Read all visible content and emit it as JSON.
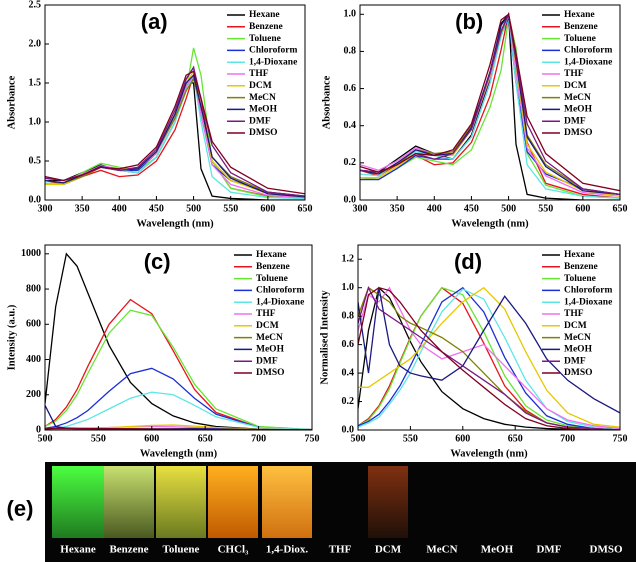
{
  "chart_data": [
    {
      "type": "line",
      "annotation": "(a)",
      "x_label": "Wavelength (nm)",
      "y_label": "Absorbance",
      "legend": "upper right",
      "xlim": [
        300,
        650
      ],
      "ylim": [
        0,
        2.5
      ],
      "xticks": [
        300,
        350,
        400,
        450,
        500,
        550,
        600,
        650
      ],
      "yticks": [
        {
          "value": 0,
          "label": "0.0"
        },
        0.5,
        {
          "value": 1,
          "label": "1.0"
        },
        1.5,
        {
          "value": 2,
          "label": "2.0"
        },
        2.5
      ],
      "x": [
        300,
        325,
        350,
        375,
        400,
        425,
        450,
        475,
        490,
        500,
        510,
        525,
        550,
        600,
        650
      ],
      "series": [
        {
          "name": "Hexane",
          "color": "#000000",
          "values": [
            0.25,
            0.25,
            0.35,
            0.45,
            0.38,
            0.35,
            0.55,
            1.0,
            1.5,
            1.5,
            0.4,
            0.05,
            0.02,
            0.0,
            0.0
          ]
        },
        {
          "name": "Benzene",
          "color": "#e8141c",
          "values": [
            0.25,
            0.2,
            0.3,
            0.38,
            0.3,
            0.32,
            0.5,
            0.9,
            1.3,
            1.6,
            1.3,
            0.5,
            0.15,
            0.05,
            0.02
          ]
        },
        {
          "name": "Toluene",
          "color": "#66e633",
          "values": [
            0.25,
            0.22,
            0.35,
            0.47,
            0.42,
            0.38,
            0.55,
            1.0,
            1.4,
            1.95,
            1.6,
            0.5,
            0.15,
            0.04,
            0.02
          ]
        },
        {
          "name": "Chloroform",
          "color": "#1a2fd6",
          "values": [
            0.2,
            0.2,
            0.3,
            0.42,
            0.38,
            0.38,
            0.6,
            1.1,
            1.55,
            1.7,
            1.1,
            0.45,
            0.25,
            0.1,
            0.05
          ]
        },
        {
          "name": "1,4-Dioxane",
          "color": "#5ce6e6",
          "values": [
            0.22,
            0.2,
            0.32,
            0.42,
            0.38,
            0.35,
            0.55,
            1.0,
            1.4,
            1.6,
            1.0,
            0.3,
            0.1,
            0.03,
            0.02
          ]
        },
        {
          "name": "THF",
          "color": "#f070f0",
          "values": [
            0.3,
            0.25,
            0.33,
            0.44,
            0.4,
            0.4,
            0.6,
            1.05,
            1.45,
            1.6,
            1.1,
            0.45,
            0.2,
            0.06,
            0.03
          ]
        },
        {
          "name": "DCM",
          "color": "#e6c800",
          "values": [
            0.2,
            0.2,
            0.3,
            0.42,
            0.4,
            0.4,
            0.62,
            1.1,
            1.5,
            1.65,
            1.2,
            0.5,
            0.25,
            0.08,
            0.04
          ]
        },
        {
          "name": "MeCN",
          "color": "#808000",
          "values": [
            0.25,
            0.22,
            0.3,
            0.42,
            0.38,
            0.4,
            0.62,
            1.05,
            1.4,
            1.55,
            1.2,
            0.55,
            0.3,
            0.1,
            0.05
          ]
        },
        {
          "name": "MeOH",
          "color": "#1a1a80",
          "values": [
            0.25,
            0.22,
            0.32,
            0.43,
            0.38,
            0.4,
            0.62,
            1.1,
            1.5,
            1.6,
            1.2,
            0.55,
            0.28,
            0.08,
            0.04
          ]
        },
        {
          "name": "DMF",
          "color": "#7a1a80",
          "values": [
            0.28,
            0.25,
            0.32,
            0.42,
            0.38,
            0.42,
            0.65,
            1.15,
            1.55,
            1.7,
            1.3,
            0.7,
            0.35,
            0.1,
            0.05
          ]
        },
        {
          "name": "DMSO",
          "color": "#800020",
          "values": [
            0.3,
            0.25,
            0.32,
            0.42,
            0.4,
            0.45,
            0.68,
            1.2,
            1.6,
            1.65,
            1.3,
            0.75,
            0.42,
            0.15,
            0.08
          ]
        }
      ]
    },
    {
      "type": "line",
      "annotation": "(b)",
      "x_label": "Wavelength (nm)",
      "y_label": "Absorbance",
      "legend": "upper right",
      "xlim": [
        300,
        650
      ],
      "ylim": [
        0,
        1.05
      ],
      "xticks": [
        300,
        350,
        400,
        450,
        500,
        550,
        600,
        650
      ],
      "yticks": [
        {
          "value": 0,
          "label": "0.0"
        },
        0.2,
        0.4,
        0.6,
        0.8,
        {
          "value": 1,
          "label": "1.0"
        }
      ],
      "x": [
        300,
        325,
        350,
        375,
        400,
        425,
        450,
        475,
        490,
        500,
        510,
        525,
        550,
        600,
        650
      ],
      "series": [
        {
          "name": "Hexane",
          "color": "#000000",
          "values": [
            0.16,
            0.15,
            0.22,
            0.29,
            0.25,
            0.22,
            0.35,
            0.65,
            0.95,
            1.0,
            0.3,
            0.03,
            0.01,
            0,
            0
          ]
        },
        {
          "name": "Benzene",
          "color": "#e8141c",
          "values": [
            0.16,
            0.13,
            0.19,
            0.24,
            0.19,
            0.2,
            0.31,
            0.56,
            0.81,
            1.0,
            0.81,
            0.31,
            0.09,
            0.03,
            0.01
          ]
        },
        {
          "name": "Toluene",
          "color": "#66e633",
          "values": [
            0.12,
            0.11,
            0.17,
            0.23,
            0.21,
            0.19,
            0.27,
            0.5,
            0.7,
            0.98,
            0.82,
            0.25,
            0.08,
            0.02,
            0.01
          ]
        },
        {
          "name": "Chloroform",
          "color": "#1a2fd6",
          "values": [
            0.11,
            0.11,
            0.17,
            0.24,
            0.22,
            0.22,
            0.34,
            0.63,
            0.89,
            0.98,
            0.63,
            0.26,
            0.14,
            0.06,
            0.03
          ]
        },
        {
          "name": "1,4-Dioxane",
          "color": "#5ce6e6",
          "values": [
            0.14,
            0.13,
            0.2,
            0.26,
            0.24,
            0.22,
            0.34,
            0.63,
            0.88,
            1.0,
            0.63,
            0.19,
            0.06,
            0.02,
            0.01
          ]
        },
        {
          "name": "THF",
          "color": "#f070f0",
          "values": [
            0.19,
            0.16,
            0.21,
            0.28,
            0.25,
            0.25,
            0.38,
            0.66,
            0.91,
            1.0,
            0.69,
            0.28,
            0.13,
            0.04,
            0.02
          ]
        },
        {
          "name": "DCM",
          "color": "#e6c800",
          "values": [
            0.12,
            0.12,
            0.18,
            0.25,
            0.24,
            0.24,
            0.38,
            0.67,
            0.91,
            1.0,
            0.73,
            0.3,
            0.15,
            0.05,
            0.02
          ]
        },
        {
          "name": "MeCN",
          "color": "#808000",
          "values": [
            0.16,
            0.14,
            0.19,
            0.27,
            0.25,
            0.26,
            0.4,
            0.68,
            0.9,
            1.0,
            0.77,
            0.35,
            0.19,
            0.06,
            0.03
          ]
        },
        {
          "name": "MeOH",
          "color": "#1a1a80",
          "values": [
            0.16,
            0.14,
            0.2,
            0.27,
            0.24,
            0.25,
            0.39,
            0.69,
            0.94,
            1.0,
            0.75,
            0.34,
            0.18,
            0.05,
            0.03
          ]
        },
        {
          "name": "DMF",
          "color": "#7a1a80",
          "values": [
            0.16,
            0.15,
            0.19,
            0.25,
            0.22,
            0.25,
            0.38,
            0.68,
            0.91,
            1.0,
            0.76,
            0.41,
            0.21,
            0.06,
            0.03
          ]
        },
        {
          "name": "DMSO",
          "color": "#800020",
          "values": [
            0.18,
            0.15,
            0.19,
            0.25,
            0.24,
            0.27,
            0.41,
            0.73,
            0.97,
            1.0,
            0.79,
            0.45,
            0.25,
            0.09,
            0.05
          ]
        }
      ]
    },
    {
      "type": "line",
      "annotation": "(c)",
      "x_label": "Wavelength (nm)",
      "y_label": "Intensity (a.u.)",
      "legend": "upper right",
      "xlim": [
        500,
        750
      ],
      "ylim": [
        0,
        1050
      ],
      "xticks": [
        500,
        550,
        600,
        650,
        700,
        750
      ],
      "yticks": [
        0,
        200,
        400,
        600,
        800,
        1000
      ],
      "x": [
        500,
        510,
        520,
        530,
        540,
        560,
        580,
        600,
        620,
        640,
        660,
        700,
        750
      ],
      "series": [
        {
          "name": "Hexane",
          "color": "#000000",
          "values": [
            150,
            700,
            1000,
            930,
            780,
            480,
            270,
            150,
            80,
            40,
            20,
            5,
            0
          ]
        },
        {
          "name": "Benzene",
          "color": "#e8141c",
          "values": [
            20,
            60,
            130,
            230,
            360,
            600,
            740,
            660,
            450,
            230,
            100,
            15,
            2
          ]
        },
        {
          "name": "Toluene",
          "color": "#66e633",
          "values": [
            20,
            50,
            110,
            200,
            320,
            550,
            680,
            650,
            470,
            260,
            120,
            20,
            3
          ]
        },
        {
          "name": "Chloroform",
          "color": "#1a2fd6",
          "values": [
            10,
            20,
            40,
            70,
            110,
            220,
            320,
            350,
            290,
            180,
            90,
            15,
            2
          ]
        },
        {
          "name": "1,4-Dioxane",
          "color": "#5ce6e6",
          "values": [
            5,
            10,
            20,
            40,
            60,
            120,
            180,
            215,
            200,
            140,
            75,
            15,
            2
          ]
        },
        {
          "name": "THF",
          "color": "#f070f0",
          "values": [
            5,
            5,
            6,
            8,
            10,
            14,
            18,
            20,
            18,
            14,
            10,
            4,
            1
          ]
        },
        {
          "name": "DCM",
          "color": "#e6c800",
          "values": [
            4,
            4,
            5,
            7,
            9,
            13,
            20,
            26,
            28,
            22,
            14,
            5,
            1
          ]
        },
        {
          "name": "MeCN",
          "color": "#808000",
          "values": [
            6,
            8,
            8,
            8,
            8,
            8,
            7,
            6,
            5,
            4,
            3,
            1,
            0
          ]
        },
        {
          "name": "MeOH",
          "color": "#1a1a80",
          "values": [
            140,
            20,
            10,
            8,
            7,
            6,
            6,
            6,
            7,
            8,
            6,
            3,
            1
          ]
        },
        {
          "name": "DMF",
          "color": "#7a1a80",
          "values": [
            8,
            10,
            9,
            8,
            8,
            7,
            6,
            5,
            4,
            3,
            2,
            1,
            0
          ]
        },
        {
          "name": "DMSO",
          "color": "#800020",
          "values": [
            6,
            10,
            11,
            10,
            9,
            8,
            6,
            5,
            4,
            3,
            2,
            1,
            0
          ]
        }
      ]
    },
    {
      "type": "line",
      "annotation": "(d)",
      "x_label": "Wavelength (nm)",
      "y_label": "Normalised Intensity",
      "legend": "upper right",
      "xlim": [
        500,
        750
      ],
      "ylim": [
        0,
        1.3
      ],
      "xticks": [
        500,
        550,
        600,
        650,
        700,
        750
      ],
      "yticks": [
        {
          "value": 0,
          "label": "0.0"
        },
        0.2,
        0.4,
        0.6,
        0.8,
        {
          "value": 1,
          "label": "1.0"
        },
        1.2
      ],
      "x": [
        500,
        510,
        520,
        530,
        540,
        550,
        560,
        580,
        600,
        620,
        640,
        660,
        680,
        700,
        725,
        750
      ],
      "series": [
        {
          "name": "Hexane",
          "color": "#000000",
          "values": [
            0.15,
            0.7,
            1.0,
            0.93,
            0.78,
            0.62,
            0.48,
            0.27,
            0.15,
            0.08,
            0.04,
            0.02,
            0.01,
            0.005,
            0,
            0
          ]
        },
        {
          "name": "Benzene",
          "color": "#e8141c",
          "values": [
            0.03,
            0.08,
            0.17,
            0.31,
            0.48,
            0.65,
            0.8,
            1.0,
            0.89,
            0.61,
            0.31,
            0.14,
            0.05,
            0.02,
            0.01,
            0
          ]
        },
        {
          "name": "Toluene",
          "color": "#66e633",
          "values": [
            0.03,
            0.07,
            0.16,
            0.29,
            0.47,
            0.64,
            0.8,
            1.0,
            0.95,
            0.69,
            0.38,
            0.17,
            0.07,
            0.03,
            0.01,
            0
          ]
        },
        {
          "name": "Chloroform",
          "color": "#1a2fd6",
          "values": [
            0.03,
            0.06,
            0.11,
            0.2,
            0.31,
            0.45,
            0.6,
            0.9,
            1.0,
            0.83,
            0.51,
            0.26,
            0.1,
            0.04,
            0.01,
            0
          ]
        },
        {
          "name": "1,4-Dioxane",
          "color": "#5ce6e6",
          "values": [
            0.02,
            0.05,
            0.09,
            0.18,
            0.28,
            0.4,
            0.55,
            0.83,
            0.99,
            0.92,
            0.65,
            0.35,
            0.15,
            0.06,
            0.02,
            0.01
          ]
        },
        {
          "name": "THF",
          "color": "#f070f0",
          "values": [
            0.7,
            0.95,
            0.9,
            1.0,
            0.85,
            0.7,
            0.6,
            0.5,
            0.55,
            0.6,
            0.45,
            0.3,
            0.15,
            0.07,
            0.03,
            0.01
          ]
        },
        {
          "name": "DCM",
          "color": "#e6c800",
          "values": [
            0.3,
            0.3,
            0.35,
            0.4,
            0.45,
            0.5,
            0.58,
            0.75,
            0.9,
            1.0,
            0.85,
            0.55,
            0.28,
            0.12,
            0.04,
            0.02
          ]
        },
        {
          "name": "MeCN",
          "color": "#808000",
          "values": [
            0.8,
            1.0,
            0.95,
            0.9,
            0.8,
            0.75,
            0.72,
            0.65,
            0.55,
            0.4,
            0.25,
            0.13,
            0.05,
            0.02,
            0.01,
            0
          ]
        },
        {
          "name": "MeOH",
          "color": "#1a1a80",
          "values": [
            0.9,
            0.4,
            1.0,
            0.6,
            0.45,
            0.4,
            0.38,
            0.35,
            0.45,
            0.7,
            0.94,
            0.75,
            0.5,
            0.35,
            0.22,
            0.12
          ]
        },
        {
          "name": "DMF",
          "color": "#7a1a80",
          "values": [
            0.75,
            1.0,
            0.85,
            0.8,
            0.75,
            0.7,
            0.65,
            0.55,
            0.45,
            0.35,
            0.25,
            0.12,
            0.05,
            0.02,
            0.01,
            0
          ]
        },
        {
          "name": "DMSO",
          "color": "#800020",
          "values": [
            0.6,
            0.95,
            1.0,
            0.98,
            0.9,
            0.8,
            0.7,
            0.55,
            0.42,
            0.3,
            0.18,
            0.08,
            0.03,
            0.01,
            0,
            0
          ]
        }
      ]
    }
  ],
  "photo": {
    "annotation": "(e)",
    "samples": [
      "Hexane",
      "Benzene",
      "Toluene",
      "CHCl₃",
      "1,4-Diox.",
      "THF",
      "DCM",
      "MeCN",
      "MeOH",
      "DMF",
      "DMSO"
    ]
  }
}
